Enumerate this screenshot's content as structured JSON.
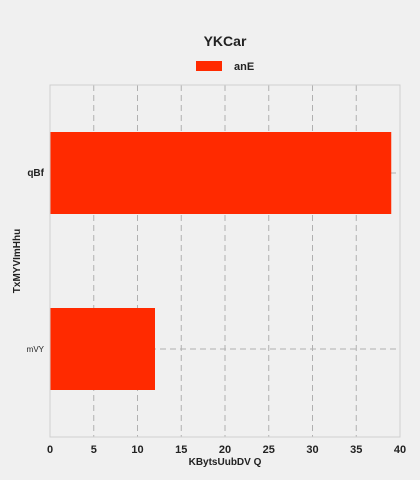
{
  "chart_data": {
    "type": "bar",
    "orientation": "horizontal",
    "title": "YKCar",
    "xlabel": "KBytsUubDV  Q",
    "ylabel": "TxMYVImHhu",
    "categories": [
      "mVY",
      "qBf"
    ],
    "series": [
      {
        "name": "anE",
        "values": [
          12,
          39
        ],
        "color": "#ff2a00"
      }
    ],
    "xlim": [
      0,
      40
    ],
    "xticks": [
      0,
      5,
      10,
      15,
      20,
      25,
      30,
      35,
      40
    ],
    "grid": true,
    "legend": "top-center"
  }
}
